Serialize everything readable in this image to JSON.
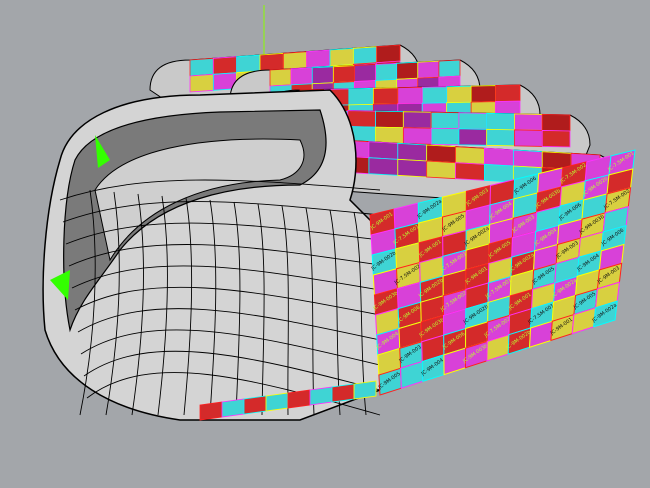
{
  "viewport": {
    "background": "#a3a6aa",
    "shell_color": "#d4d4d4",
    "edge_color": "#000000",
    "highlight_color": "#33ff00",
    "axis_color": "#88ff00"
  },
  "panel_colors": [
    "#d42a2a",
    "#d841d8",
    "#3fd4d4",
    "#d8d040",
    "#b01c1c",
    "#9a2aa0"
  ],
  "panel_edge_colors": [
    "#ff2020",
    "#ff30ff",
    "#00ffff",
    "#ffff00"
  ],
  "panel_labels": [
    "JC-9M-001",
    "JC-9M-002b",
    "JC-9M-003b",
    "JC-9M-004",
    "JC-9M-005",
    "JC-7.5M-001",
    "JC-7.5M-002",
    "JC-9M-006",
    "JC-9M-003",
    "JC-9M-002a"
  ]
}
